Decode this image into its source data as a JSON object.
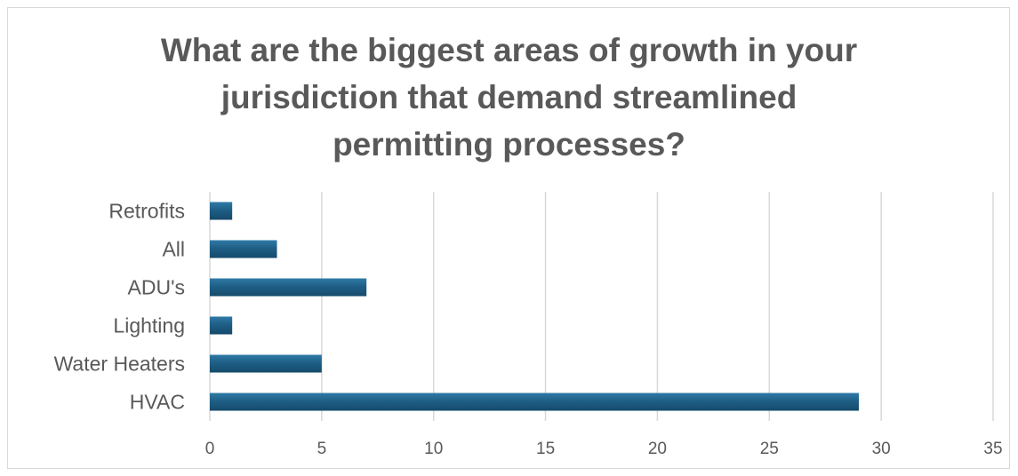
{
  "chart_data": {
    "type": "bar",
    "orientation": "horizontal",
    "title_lines": [
      "What are the biggest areas of growth in your",
      "jurisdiction that demand streamlined",
      "permitting processes?"
    ],
    "categories": [
      "Retrofits",
      "All",
      "ADU's",
      "Lighting",
      "Water Heaters",
      "HVAC"
    ],
    "values": [
      1,
      3,
      7,
      1,
      5,
      29
    ],
    "xlim": [
      0,
      35
    ],
    "x_ticks": [
      0,
      5,
      10,
      15,
      20,
      25,
      30,
      35
    ],
    "grid": "vertical",
    "legend": "none",
    "bar_color": "#1f5f86"
  }
}
